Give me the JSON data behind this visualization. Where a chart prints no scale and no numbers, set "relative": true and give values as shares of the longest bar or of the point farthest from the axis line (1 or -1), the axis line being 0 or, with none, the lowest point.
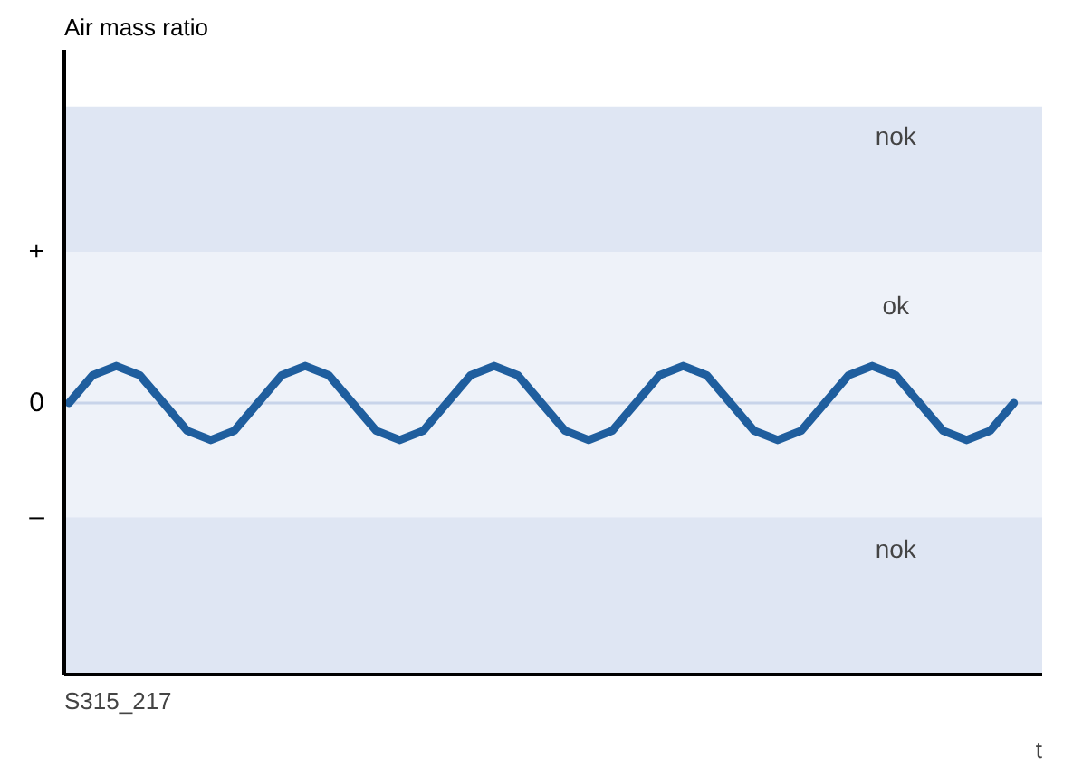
{
  "chart_data": {
    "type": "line",
    "title": "Air mass ratio",
    "xlabel": "t",
    "relative": true,
    "categories": [
      null,
      null,
      null,
      null,
      null,
      null,
      null,
      null,
      null,
      null,
      null,
      null,
      null,
      null,
      null,
      null,
      null,
      null,
      null,
      null,
      null,
      null,
      null,
      null,
      null,
      null,
      null,
      null,
      null,
      null,
      null,
      null,
      null,
      null,
      null,
      null,
      null,
      null,
      null,
      null,
      null
    ],
    "series": [
      {
        "color": "#1f5e9e",
        "values": [
          0.88,
          0.97,
          1,
          0.97,
          0.88,
          0.79,
          0.76,
          0.79,
          0.88,
          0.97,
          1,
          0.97,
          0.88,
          0.79,
          0.76,
          0.79,
          0.88,
          0.97,
          1,
          0.97,
          0.88,
          0.79,
          0.76,
          0.79,
          0.88,
          0.97,
          1,
          0.97,
          0.88,
          0.79,
          0.76,
          0.79,
          0.88,
          0.97,
          1,
          0.97,
          0.88,
          0.79,
          0.76,
          0.79,
          0.88
        ]
      }
    ],
    "bands": [
      {
        "axis": "y",
        "from": 1.37,
        "to": 1.84,
        "label": "nok",
        "color": "#dfe6f3"
      },
      {
        "axis": "y",
        "from": 0.51,
        "to": 1.37,
        "label": "ok",
        "color": "#eef2f9"
      },
      {
        "axis": "y",
        "from": 0,
        "to": 0.51,
        "label": "nok",
        "color": "#dfe6f3"
      }
    ],
    "ref_lines": [
      {
        "axis": "y",
        "value": 0.88,
        "color": "#c8d4ea"
      }
    ],
    "annotations": [
      "+",
      "0",
      "–",
      "S315_217"
    ],
    "grid": false,
    "marker": "none",
    "line_style": "solid"
  }
}
